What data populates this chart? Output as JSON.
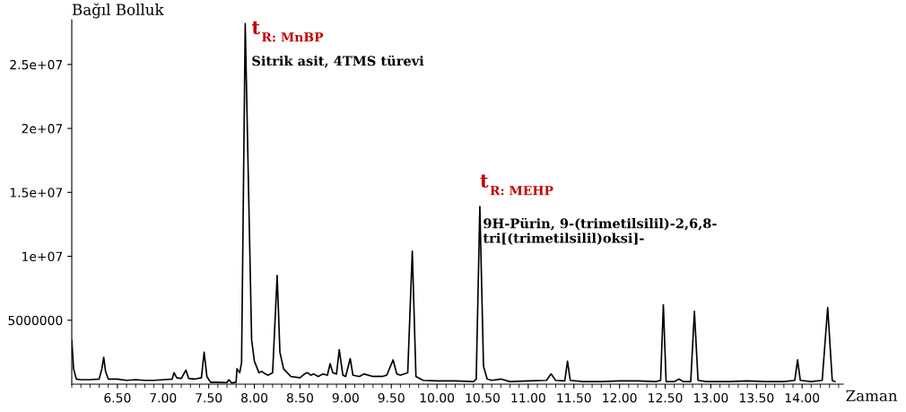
{
  "chart_data": {
    "type": "line",
    "xlabel": "Zaman",
    "ylabel": "Bağıl Bolluk",
    "x": [
      6.0,
      6.02,
      6.05,
      6.1,
      6.2,
      6.3,
      6.33,
      6.35,
      6.37,
      6.4,
      6.5,
      6.6,
      6.7,
      6.8,
      6.9,
      7.0,
      7.1,
      7.12,
      7.15,
      7.2,
      7.25,
      7.28,
      7.35,
      7.42,
      7.45,
      7.48,
      7.52,
      7.6,
      7.7,
      7.72,
      7.75,
      7.8,
      7.81,
      7.84,
      7.86,
      7.9,
      7.94,
      7.97,
      8.0,
      8.05,
      8.08,
      8.12,
      8.15,
      8.2,
      8.25,
      8.28,
      8.32,
      8.4,
      8.5,
      8.55,
      8.58,
      8.62,
      8.65,
      8.7,
      8.75,
      8.8,
      8.83,
      8.86,
      8.9,
      8.93,
      8.97,
      9.0,
      9.05,
      9.08,
      9.15,
      9.2,
      9.3,
      9.4,
      9.45,
      9.52,
      9.56,
      9.6,
      9.68,
      9.73,
      9.77,
      9.85,
      10.0,
      10.2,
      10.4,
      10.43,
      10.47,
      10.51,
      10.55,
      10.6,
      10.7,
      10.8,
      11.0,
      11.2,
      11.25,
      11.3,
      11.4,
      11.43,
      11.46,
      11.6,
      11.8,
      12.0,
      12.2,
      12.4,
      12.45,
      12.48,
      12.51,
      12.6,
      12.65,
      12.7,
      12.78,
      12.82,
      12.86,
      12.95,
      13.2,
      13.4,
      13.6,
      13.8,
      13.92,
      13.95,
      13.98,
      14.1,
      14.22,
      14.28,
      14.33,
      14.36
    ],
    "values": [
      3400000,
      1200000,
      400000,
      350000,
      350000,
      400000,
      1200000,
      2100000,
      1000000,
      400000,
      400000,
      300000,
      350000,
      300000,
      300000,
      350000,
      400000,
      900000,
      500000,
      450000,
      1100000,
      450000,
      400000,
      500000,
      2500000,
      600000,
      150000,
      150000,
      120000,
      350000,
      100000,
      150000,
      1200000,
      900000,
      1700000,
      28200000,
      14000000,
      3500000,
      1800000,
      900000,
      1000000,
      800000,
      700000,
      900000,
      8500000,
      2500000,
      1200000,
      600000,
      500000,
      800000,
      900000,
      700000,
      800000,
      600000,
      800000,
      700000,
      1600000,
      900000,
      800000,
      2700000,
      700000,
      600000,
      2000000,
      700000,
      600000,
      800000,
      600000,
      600000,
      700000,
      1900000,
      800000,
      700000,
      900000,
      10400000,
      600000,
      300000,
      250000,
      250000,
      200000,
      400000,
      13900000,
      1400000,
      400000,
      300000,
      400000,
      200000,
      250000,
      300000,
      800000,
      300000,
      250000,
      1800000,
      300000,
      200000,
      200000,
      250000,
      250000,
      200000,
      300000,
      6200000,
      200000,
      200000,
      400000,
      200000,
      200000,
      5700000,
      300000,
      200000,
      200000,
      250000,
      200000,
      200000,
      300000,
      1900000,
      300000,
      200000,
      300000,
      6000000,
      300000,
      200000
    ],
    "color": "#000000",
    "line_style": "solid",
    "marker": "none",
    "grid": false,
    "legend": false,
    "xlim": [
      6.0,
      14.45
    ],
    "ylim": [
      0,
      28500000
    ],
    "xticks": [
      {
        "value": 6.5,
        "label": "6.50"
      },
      {
        "value": 7.0,
        "label": "7.00"
      },
      {
        "value": 7.5,
        "label": "7.50"
      },
      {
        "value": 8.0,
        "label": "8.00"
      },
      {
        "value": 8.5,
        "label": "8.50"
      },
      {
        "value": 9.0,
        "label": "9.00"
      },
      {
        "value": 9.5,
        "label": "9.50"
      },
      {
        "value": 10.0,
        "label": "10.00"
      },
      {
        "value": 10.5,
        "label": "10.50"
      },
      {
        "value": 11.0,
        "label": "11.00"
      },
      {
        "value": 11.5,
        "label": "11.50"
      },
      {
        "value": 12.0,
        "label": "12.00"
      },
      {
        "value": 12.5,
        "label": "12.50"
      },
      {
        "value": 13.0,
        "label": "13.00"
      },
      {
        "value": 13.5,
        "label": "13.50"
      },
      {
        "value": 14.0,
        "label": "14.00"
      }
    ],
    "yticks": [
      5000000,
      {
        "value": 10000000,
        "label": "1e+07"
      },
      {
        "value": 15000000,
        "label": "1.5e+07"
      },
      {
        "value": 20000000,
        "label": "2e+07"
      },
      {
        "value": 25000000,
        "label": "2.5e+07"
      }
    ],
    "annotations": [
      "t$_{R: MnBP}$",
      "Sitrik asit, 4TMS türevi",
      "t$_{R: MEHP}$",
      "9H-Pürin, 9-(trimetilsilil)-2,6,8-\ntri[(trimetilsilil)oksi]-"
    ]
  }
}
